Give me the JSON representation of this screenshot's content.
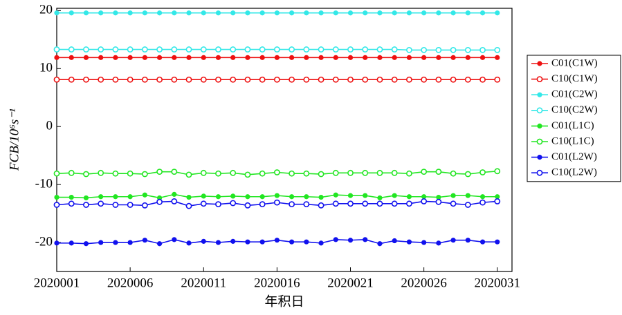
{
  "chart_data": {
    "type": "line",
    "xlabel": "年积日",
    "ylabel": "FCB/10⁶s⁻¹",
    "x": [
      2020001,
      2020002,
      2020003,
      2020004,
      2020005,
      2020006,
      2020007,
      2020008,
      2020009,
      2020010,
      2020011,
      2020012,
      2020013,
      2020014,
      2020015,
      2020016,
      2020017,
      2020018,
      2020019,
      2020020,
      2020021,
      2020022,
      2020023,
      2020024,
      2020025,
      2020026,
      2020027,
      2020028,
      2020029,
      2020030,
      2020031
    ],
    "xlim": [
      2020001,
      2020032
    ],
    "xticks": [
      2020001,
      2020006,
      2020011,
      2020016,
      2020021,
      2020026,
      2020031
    ],
    "ylim": [
      -25,
      20.4
    ],
    "yticks": [
      20,
      10,
      0,
      -10,
      -20
    ],
    "legend": "outside-right",
    "series": [
      {
        "name": "C01(C1W)",
        "color": "#ee1111",
        "marker": "filled",
        "values": [
          11.9,
          11.9,
          11.9,
          11.9,
          11.9,
          11.9,
          11.9,
          11.9,
          11.9,
          11.9,
          11.9,
          11.9,
          11.9,
          11.9,
          11.9,
          11.9,
          11.9,
          11.9,
          11.9,
          11.9,
          11.9,
          11.9,
          11.9,
          11.9,
          11.9,
          11.9,
          11.9,
          11.9,
          11.9,
          11.9,
          11.9
        ]
      },
      {
        "name": "C10(C1W)",
        "color": "#ee1111",
        "marker": "open",
        "values": [
          8.1,
          8.1,
          8.1,
          8.1,
          8.1,
          8.1,
          8.1,
          8.1,
          8.1,
          8.1,
          8.1,
          8.1,
          8.1,
          8.1,
          8.1,
          8.1,
          8.1,
          8.1,
          8.1,
          8.1,
          8.1,
          8.1,
          8.1,
          8.1,
          8.1,
          8.1,
          8.1,
          8.1,
          8.1,
          8.1,
          8.1
        ]
      },
      {
        "name": "C01(C2W)",
        "color": "#33e8e8",
        "marker": "filled",
        "values": [
          19.6,
          19.6,
          19.6,
          19.6,
          19.6,
          19.6,
          19.6,
          19.6,
          19.6,
          19.6,
          19.6,
          19.6,
          19.6,
          19.6,
          19.6,
          19.6,
          19.6,
          19.6,
          19.6,
          19.6,
          19.6,
          19.6,
          19.6,
          19.6,
          19.6,
          19.6,
          19.6,
          19.6,
          19.6,
          19.6,
          19.6
        ]
      },
      {
        "name": "C10(C2W)",
        "color": "#33e8e8",
        "marker": "open",
        "values": [
          13.3,
          13.3,
          13.3,
          13.3,
          13.3,
          13.3,
          13.3,
          13.3,
          13.3,
          13.3,
          13.3,
          13.3,
          13.3,
          13.3,
          13.3,
          13.3,
          13.3,
          13.3,
          13.3,
          13.3,
          13.3,
          13.3,
          13.3,
          13.3,
          13.2,
          13.2,
          13.2,
          13.2,
          13.2,
          13.2,
          13.2
        ]
      },
      {
        "name": "C01(L1C)",
        "color": "#22e622",
        "marker": "filled",
        "values": [
          -12.2,
          -12.2,
          -12.3,
          -12.1,
          -12.1,
          -12.1,
          -11.8,
          -12.3,
          -11.7,
          -12.2,
          -12.0,
          -12.1,
          -12.0,
          -12.1,
          -12.1,
          -11.9,
          -12.1,
          -12.1,
          -12.2,
          -11.8,
          -11.9,
          -11.9,
          -12.3,
          -11.9,
          -12.1,
          -12.1,
          -12.2,
          -11.9,
          -11.9,
          -12.1,
          -12.1
        ]
      },
      {
        "name": "C10(L1C)",
        "color": "#22e622",
        "marker": "open",
        "values": [
          -8.1,
          -8.0,
          -8.2,
          -8.0,
          -8.1,
          -8.1,
          -8.2,
          -7.8,
          -7.8,
          -8.3,
          -8.0,
          -8.1,
          -8.0,
          -8.3,
          -8.1,
          -7.9,
          -8.1,
          -8.1,
          -8.2,
          -8.0,
          -8.0,
          -8.0,
          -8.0,
          -8.0,
          -8.1,
          -7.8,
          -7.8,
          -8.1,
          -8.2,
          -7.9,
          -7.7
        ]
      },
      {
        "name": "C01(L2W)",
        "color": "#1111ee",
        "marker": "filled",
        "values": [
          -20.1,
          -20.1,
          -20.2,
          -20.0,
          -20.0,
          -20.0,
          -19.6,
          -20.2,
          -19.5,
          -20.1,
          -19.8,
          -20.0,
          -19.8,
          -19.9,
          -19.9,
          -19.6,
          -19.9,
          -19.9,
          -20.1,
          -19.5,
          -19.6,
          -19.5,
          -20.2,
          -19.7,
          -19.9,
          -20.0,
          -20.1,
          -19.6,
          -19.6,
          -19.9,
          -19.9
        ]
      },
      {
        "name": "C10(L2W)",
        "color": "#1111ee",
        "marker": "open",
        "values": [
          -13.5,
          -13.3,
          -13.5,
          -13.3,
          -13.5,
          -13.5,
          -13.6,
          -13.0,
          -12.9,
          -13.7,
          -13.3,
          -13.4,
          -13.2,
          -13.6,
          -13.4,
          -13.1,
          -13.4,
          -13.4,
          -13.6,
          -13.3,
          -13.3,
          -13.3,
          -13.3,
          -13.3,
          -13.3,
          -12.9,
          -13.0,
          -13.3,
          -13.5,
          -13.1,
          -12.9
        ]
      }
    ]
  }
}
